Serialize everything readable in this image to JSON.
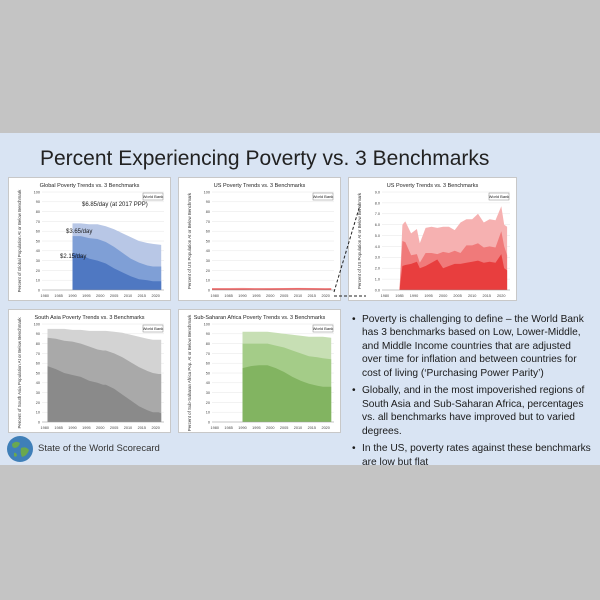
{
  "slide_title": "Percent Experiencing Poverty vs. 3 Benchmarks",
  "footer": {
    "org_name": "State of the World Scorecard"
  },
  "bullets": [
    "Poverty is challenging to define – the World Bank has 3 benchmarks based on Low, Lower-Middle, and Middle Income countries that are adjusted over time for inflation and between countries for cost of living (‘Purchasing Power Parity’)",
    "Globally, and in the most impoverished regions of South Asia and Sub-Saharan Africa, percentages vs. all benchmarks have improved but to varied degrees.",
    "In the US, poverty rates against these benchmarks are low but flat"
  ],
  "colors": {
    "blue_light": "#b8c7e6",
    "blue_mid": "#7f9fd6",
    "blue_dark": "#4f78c2",
    "red_light": "#f6b1b1",
    "red_mid": "#f07a7a",
    "red_dark": "#e83e3e",
    "gray_light": "#d3d3d3",
    "gray_mid": "#a9a9a9",
    "gray_dark": "#8a8a8a",
    "green_light": "#c7dfb4",
    "green_mid": "#a4cc88",
    "green_dark": "#82b461"
  },
  "chart_data": [
    {
      "id": "global",
      "type": "area",
      "title": "Global Poverty Trends vs. 3 Benchmarks",
      "ylabel": "Percent of Global Population At or Below Benchmark",
      "source_label": "World Bank",
      "color_scheme": "blue",
      "ylim": [
        0,
        100
      ],
      "y_ticks": [
        "0",
        "10",
        "20",
        "30",
        "40",
        "50",
        "60",
        "70",
        "80",
        "90",
        "100"
      ],
      "x_ticks": [
        "1980",
        "1985",
        "1990",
        "1995",
        "2000",
        "2005",
        "2010",
        "2015",
        "2020"
      ],
      "annotations": [
        "$6.85/day (at 2017 PPP)",
        "$3.65/day",
        "$2.15/day"
      ],
      "x": [
        1990,
        1993,
        1996,
        1999,
        2002,
        2005,
        2008,
        2011,
        2014,
        2017,
        2019,
        2022
      ],
      "series": [
        {
          "values": [
            68,
            68,
            67,
            67,
            65,
            62,
            58,
            54,
            50,
            48,
            47,
            46
          ]
        },
        {
          "values": [
            55,
            55,
            53,
            52,
            49,
            44,
            38,
            32,
            28,
            25,
            24,
            24
          ]
        },
        {
          "values": [
            38,
            36,
            32,
            30,
            27,
            22,
            18,
            14,
            11,
            10,
            9,
            9
          ]
        }
      ]
    },
    {
      "id": "us",
      "type": "line",
      "title": "US Poverty Trends vs. 3 Benchmarks",
      "ylabel": "Percent of US Population At or Below Benchmark",
      "source_label": "World Bank",
      "color_scheme": "red",
      "ylim": [
        0,
        100
      ],
      "y_ticks": [
        "0",
        "10",
        "20",
        "30",
        "40",
        "50",
        "60",
        "70",
        "80",
        "90",
        "100"
      ],
      "x_ticks": [
        "1980",
        "1985",
        "1990",
        "1995",
        "2000",
        "2005",
        "2010",
        "2015",
        "2020"
      ],
      "x": [
        1979,
        1985,
        1990,
        1995,
        2000,
        2005,
        2010,
        2015,
        2020,
        2022
      ],
      "series": [
        {
          "values": [
            1.5,
            1.5,
            1.6,
            1.4,
            1.5,
            1.5,
            1.6,
            1.5,
            1.4,
            1.5
          ]
        },
        {
          "values": [
            1.0,
            1.0,
            1.1,
            1.0,
            1.0,
            1.1,
            1.2,
            1.1,
            1.0,
            1.0
          ]
        },
        {
          "values": [
            0.8,
            0.8,
            0.8,
            0.9,
            0.8,
            0.9,
            1.0,
            0.9,
            0.8,
            0.8
          ]
        }
      ]
    },
    {
      "id": "us-zoom",
      "type": "area",
      "title": "US Poverty Trends vs. 3 Benchmarks",
      "ylabel": "Percent of US Population At or Below Benchmark",
      "source_label": "World Bank",
      "color_scheme": "red",
      "ylim": [
        0,
        9
      ],
      "y_ticks": [
        "0.0",
        "1.0",
        "2.0",
        "3.0",
        "4.0",
        "5.0",
        "6.0",
        "7.0",
        "8.0",
        "9.0"
      ],
      "x_ticks": [
        "1980",
        "1985",
        "1990",
        "1995",
        "2000",
        "2005",
        "2010",
        "2015",
        "2020"
      ],
      "x": [
        1985,
        1986,
        1987,
        1989,
        1991,
        1992,
        1994,
        1996,
        1998,
        2000,
        2002,
        2004,
        2006,
        2008,
        2010,
        2012,
        2014,
        2016,
        2018,
        2020,
        2021,
        2022
      ],
      "series": [
        {
          "values": [
            0,
            6.0,
            6.3,
            5.2,
            5.6,
            4.3,
            5.7,
            5.8,
            5.7,
            5.8,
            5.8,
            5.5,
            6.2,
            6.5,
            6.5,
            7.0,
            6.2,
            6.5,
            6.4,
            7.7,
            6.0,
            5.8
          ]
        },
        {
          "values": [
            0,
            4.5,
            4.4,
            3.2,
            3.3,
            2.5,
            3.4,
            3.4,
            3.3,
            3.5,
            3.4,
            3.6,
            3.4,
            4.1,
            4.1,
            4.3,
            3.9,
            4.0,
            3.9,
            5.4,
            4.0,
            3.2
          ]
        },
        {
          "values": [
            0,
            2.2,
            2.3,
            2.4,
            2.6,
            2.0,
            2.2,
            2.5,
            2.8,
            2.0,
            2.2,
            2.4,
            2.4,
            2.5,
            2.6,
            2.7,
            2.5,
            2.6,
            2.5,
            3.3,
            2.0,
            1.8
          ]
        }
      ]
    },
    {
      "id": "south-asia",
      "type": "area",
      "title": "South Asia Poverty Trends vs. 3 Benchmarks",
      "ylabel": "Percent of South Asia Population At or Below Benchmark",
      "source_label": "World Bank",
      "color_scheme": "gray",
      "ylim": [
        0,
        100
      ],
      "y_ticks": [
        "0",
        "10",
        "20",
        "30",
        "40",
        "50",
        "60",
        "70",
        "80",
        "90",
        "100"
      ],
      "x_ticks": [
        "1980",
        "1985",
        "1990",
        "1995",
        "2000",
        "2005",
        "2010",
        "2015",
        "2020"
      ],
      "x": [
        1981,
        1984,
        1987,
        1990,
        1993,
        1996,
        1999,
        2001,
        2002,
        2005,
        2008,
        2011,
        2014,
        2017,
        2019,
        2021,
        2022
      ],
      "series": [
        {
          "values": [
            95,
            95,
            95,
            94,
            94,
            93,
            93,
            93,
            93,
            92,
            91,
            89,
            87,
            85,
            84,
            84,
            84
          ]
        },
        {
          "values": [
            86,
            85,
            83,
            82,
            80,
            77,
            74,
            73,
            73,
            70,
            66,
            61,
            56,
            52,
            50,
            49,
            49
          ]
        },
        {
          "values": [
            57,
            54,
            50,
            48,
            46,
            42,
            40,
            38,
            38,
            34,
            28,
            22,
            16,
            12,
            10,
            10,
            9
          ]
        }
      ],
      "gap": [
        1999,
        2001
      ]
    },
    {
      "id": "ssa",
      "type": "area",
      "title": "Sub-Saharan Africa Poverty Trends vs. 3 Benchmarks",
      "ylabel": "Percent of Sub-Saharan Africa Pop. At or Below Benchmark",
      "source_label": "World Bank",
      "color_scheme": "green",
      "ylim": [
        0,
        100
      ],
      "y_ticks": [
        "0",
        "10",
        "20",
        "30",
        "40",
        "50",
        "60",
        "70",
        "80",
        "90",
        "100"
      ],
      "x_ticks": [
        "1980",
        "1985",
        "1990",
        "1995",
        "2000",
        "2005",
        "2010",
        "2015",
        "2020"
      ],
      "x": [
        1990,
        1993,
        1996,
        1999,
        2002,
        2005,
        2008,
        2011,
        2014,
        2017,
        2019,
        2022
      ],
      "series": [
        {
          "values": [
            92,
            92,
            92,
            92,
            91,
            90,
            89,
            88,
            87,
            87,
            87,
            86
          ]
        },
        {
          "values": [
            80,
            80,
            80,
            80,
            78,
            76,
            73,
            70,
            67,
            66,
            65,
            64
          ]
        },
        {
          "values": [
            55,
            57,
            58,
            58,
            55,
            51,
            46,
            42,
            39,
            37,
            36,
            36
          ]
        }
      ]
    }
  ]
}
